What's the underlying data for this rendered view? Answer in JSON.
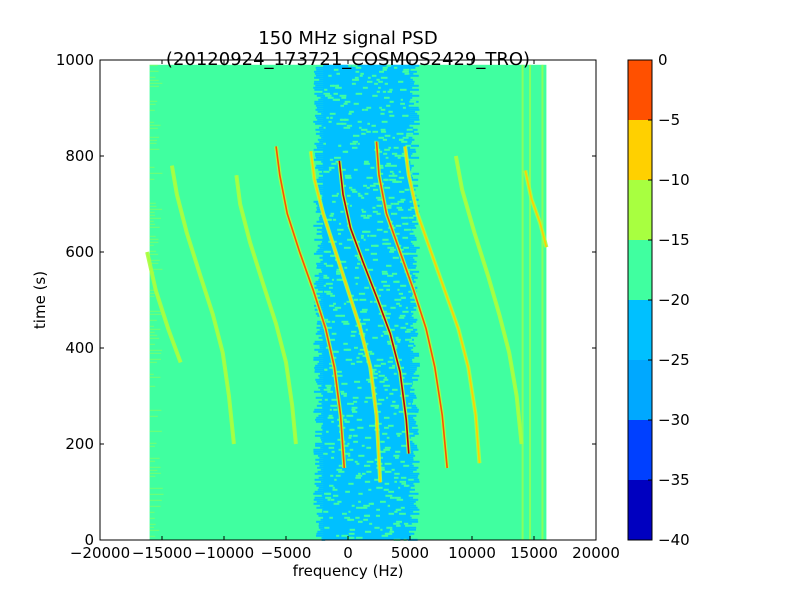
{
  "chart_data": {
    "type": "heatmap",
    "title": "150 MHz signal PSD (20120924_173721_COSMOS2429_TRO)",
    "xlabel": "frequency (Hz)",
    "ylabel": "time (s)",
    "xlim": [
      -20000,
      20000
    ],
    "ylim": [
      0,
      1000
    ],
    "xticks": [
      -20000,
      -15000,
      -10000,
      -5000,
      0,
      5000,
      10000,
      15000,
      20000
    ],
    "xtick_labels": [
      "−20000",
      "−15000",
      "−10000",
      "−5000",
      "0",
      "5000",
      "10000",
      "15000",
      "20000"
    ],
    "yticks": [
      0,
      200,
      400,
      600,
      800,
      1000
    ],
    "ytick_labels": [
      "0",
      "200",
      "400",
      "600",
      "800",
      "1000"
    ],
    "colorbar": {
      "levels": [
        -40,
        -35,
        -30,
        -25,
        -20,
        -15,
        -10,
        -5,
        0
      ],
      "labels": [
        "−40",
        "−35",
        "−30",
        "−25",
        "−20",
        "−15",
        "−10",
        "−5",
        "0"
      ],
      "colors": [
        "#0000c0",
        "#0040ff",
        "#00a8ff",
        "#00c0ff",
        "#40ffa0",
        "#a8ff40",
        "#ffd000",
        "#ff5000",
        "#c00000"
      ]
    },
    "data_extent": {
      "freq_range": [
        -16000,
        16000
      ],
      "time_range": [
        0,
        990
      ],
      "background_level": "-25 to -20",
      "central_band": {
        "freq_range": [
          -2000,
          5000
        ],
        "level": "-30 to -25"
      }
    },
    "traces": [
      {
        "name": "center",
        "level": "-5 to 0",
        "points": [
          [
            -700,
            790
          ],
          [
            -400,
            720
          ],
          [
            200,
            650
          ],
          [
            1200,
            580
          ],
          [
            2400,
            500
          ],
          [
            3400,
            430
          ],
          [
            4200,
            350
          ],
          [
            4700,
            250
          ],
          [
            4900,
            180
          ]
        ]
      },
      {
        "name": "plus-1",
        "level": "-10 to -5",
        "points": [
          [
            2300,
            830
          ],
          [
            2500,
            760
          ],
          [
            3100,
            680
          ],
          [
            4200,
            600
          ],
          [
            5300,
            520
          ],
          [
            6300,
            440
          ],
          [
            7000,
            360
          ],
          [
            7600,
            260
          ],
          [
            8000,
            150
          ]
        ]
      },
      {
        "name": "minus-1",
        "level": "-10 to -5",
        "points": [
          [
            -5800,
            820
          ],
          [
            -5500,
            760
          ],
          [
            -4900,
            680
          ],
          [
            -3900,
            600
          ],
          [
            -2800,
            520
          ],
          [
            -1800,
            440
          ],
          [
            -1100,
            360
          ],
          [
            -600,
            260
          ],
          [
            -300,
            150
          ]
        ]
      },
      {
        "name": "plus-2",
        "level": "-15 to -10",
        "points": [
          [
            4600,
            820
          ],
          [
            4900,
            760
          ],
          [
            5600,
            680
          ],
          [
            6700,
            600
          ],
          [
            7800,
            520
          ],
          [
            8900,
            440
          ],
          [
            9700,
            360
          ],
          [
            10300,
            260
          ],
          [
            10600,
            160
          ]
        ]
      },
      {
        "name": "minus-2",
        "level": "-15 to -10",
        "points": [
          [
            -3000,
            810
          ],
          [
            -2700,
            750
          ],
          [
            -2000,
            680
          ],
          [
            -1000,
            600
          ],
          [
            0,
            520
          ],
          [
            1000,
            440
          ],
          [
            1800,
            360
          ],
          [
            2300,
            260
          ],
          [
            2600,
            120
          ]
        ]
      },
      {
        "name": "far-right",
        "level": "-20 to -15",
        "points": [
          [
            8700,
            800
          ],
          [
            9200,
            730
          ],
          [
            10200,
            640
          ],
          [
            11300,
            550
          ],
          [
            12200,
            470
          ],
          [
            13000,
            390
          ],
          [
            13600,
            300
          ],
          [
            14000,
            200
          ]
        ]
      },
      {
        "name": "far-left",
        "level": "-20 to -15",
        "points": [
          [
            -14200,
            780
          ],
          [
            -13800,
            720
          ],
          [
            -13000,
            640
          ],
          [
            -11900,
            550
          ],
          [
            -10900,
            470
          ],
          [
            -10100,
            390
          ],
          [
            -9600,
            300
          ],
          [
            -9200,
            200
          ]
        ]
      },
      {
        "name": "mid-left",
        "level": "-20 to -15",
        "points": [
          [
            -9000,
            760
          ],
          [
            -8700,
            700
          ],
          [
            -7900,
            620
          ],
          [
            -6800,
            530
          ],
          [
            -5800,
            450
          ],
          [
            -5000,
            370
          ],
          [
            -4500,
            280
          ],
          [
            -4200,
            200
          ]
        ]
      },
      {
        "name": "left-edge",
        "level": "-20 to -15",
        "points": [
          [
            -16200,
            600
          ],
          [
            -15500,
            520
          ],
          [
            -14500,
            440
          ],
          [
            -13500,
            370
          ]
        ]
      },
      {
        "name": "right-edge",
        "level": "-15 to -10",
        "points": [
          [
            14300,
            770
          ],
          [
            14800,
            710
          ],
          [
            15500,
            660
          ],
          [
            16000,
            610
          ]
        ]
      }
    ]
  }
}
